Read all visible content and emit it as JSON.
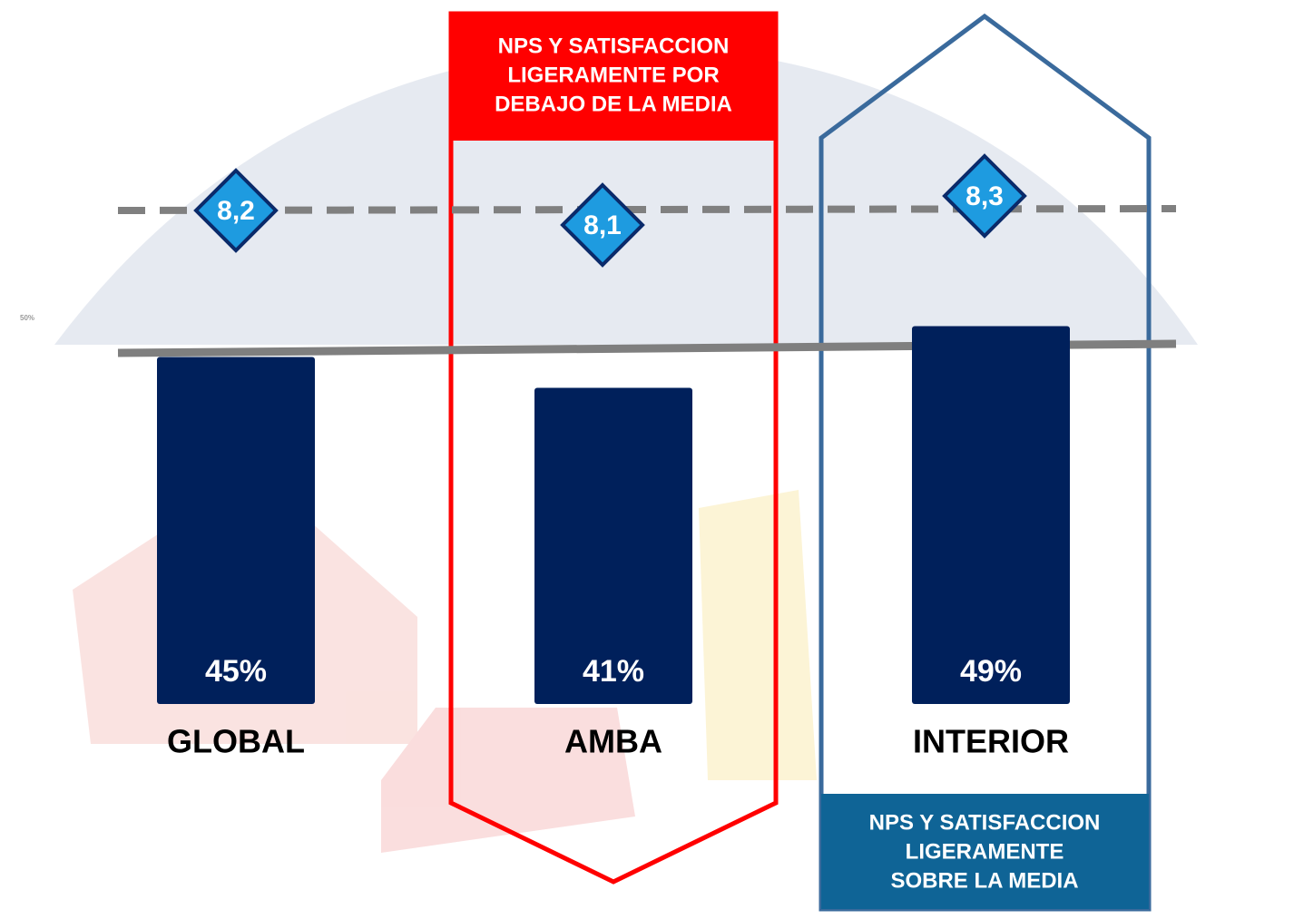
{
  "chart_data": {
    "type": "bar",
    "categories": [
      "GLOBAL",
      "AMBA",
      "INTERIOR"
    ],
    "series": [
      {
        "name": "NPS",
        "color": "#00205b",
        "values": [
          45,
          41,
          49
        ],
        "value_labels": [
          "45%",
          "41%",
          "49%"
        ]
      },
      {
        "name": "Satisfaccion",
        "color": "#1e9be0",
        "axis": "y2",
        "values": [
          8.2,
          8.1,
          8.3
        ],
        "value_labels": [
          "8,2",
          "8,1",
          "8,3"
        ]
      }
    ],
    "ylim": [
      0,
      91.3
    ],
    "yticks": [
      {
        "value": 50,
        "label": "50%"
      }
    ],
    "y2lim": [
      4.8,
      9.65
    ],
    "reference_line": 46,
    "y2_reference_line": 8.2,
    "annotations": [
      {
        "lines": [
          "NPS Y SATISFACCION",
          "LIGERAMENTE POR",
          "DEBAJO DE LA MEDIA"
        ],
        "color": "#ff0000"
      },
      {
        "lines": [
          "NPS Y SATISFACCION",
          "LIGERAMENTE",
          "SOBRE LA MEDIA"
        ],
        "color": "#0f6496"
      }
    ]
  }
}
